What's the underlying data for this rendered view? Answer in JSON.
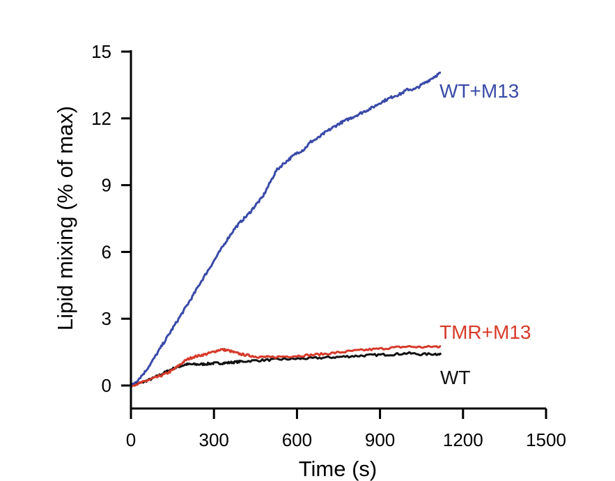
{
  "chart_data": {
    "type": "line",
    "title": "",
    "xlabel": "Time (s)",
    "ylabel": "Lipid mixing (% of max)",
    "xlim": [
      0,
      1500
    ],
    "ylim": [
      0,
      15
    ],
    "xticks": [
      0,
      300,
      600,
      900,
      1200,
      1500
    ],
    "yticks": [
      0,
      3,
      6,
      9,
      12,
      15
    ],
    "xtick_labels": [
      "0",
      "300",
      "600",
      "900",
      "1200",
      "1500"
    ],
    "ytick_labels": [
      "0",
      "3",
      "6",
      "9",
      "12",
      "15"
    ],
    "grid": false,
    "legend": "inline labels at line ends",
    "series": [
      {
        "name": "WT+M13",
        "color": "#3a4aa8",
        "x": [
          0,
          25,
          50,
          75,
          100,
          125,
          150,
          175,
          200,
          225,
          250,
          275,
          300,
          325,
          350,
          375,
          400,
          425,
          450,
          475,
          500,
          525,
          550,
          575,
          600,
          625,
          650,
          675,
          700,
          725,
          750,
          775,
          800,
          825,
          850,
          875,
          900,
          925,
          950,
          975,
          1000,
          1025,
          1050,
          1075,
          1100,
          1120
        ],
        "y": [
          0,
          0.25,
          0.6,
          1.05,
          1.55,
          2.05,
          2.55,
          3.05,
          3.55,
          4.05,
          4.6,
          5.1,
          5.6,
          6.1,
          6.6,
          7.05,
          7.4,
          7.7,
          8.1,
          8.45,
          9.05,
          9.65,
          9.95,
          10.2,
          10.45,
          10.6,
          10.95,
          11.1,
          11.35,
          11.55,
          11.75,
          11.9,
          12.05,
          12.2,
          12.35,
          12.5,
          12.7,
          12.85,
          13.0,
          13.1,
          13.3,
          13.3,
          13.5,
          13.7,
          13.9,
          14.05
        ]
      },
      {
        "name": "TMR+M13",
        "color": "#d63a2a",
        "x": [
          0,
          25,
          50,
          75,
          100,
          125,
          150,
          175,
          200,
          225,
          250,
          275,
          300,
          325,
          350,
          375,
          400,
          425,
          450,
          475,
          500,
          550,
          600,
          650,
          700,
          750,
          800,
          850,
          900,
          950,
          1000,
          1050,
          1100,
          1120
        ],
        "y": [
          0,
          0.08,
          0.18,
          0.3,
          0.4,
          0.52,
          0.68,
          0.92,
          1.15,
          1.28,
          1.35,
          1.42,
          1.52,
          1.62,
          1.58,
          1.48,
          1.4,
          1.35,
          1.3,
          1.28,
          1.27,
          1.3,
          1.33,
          1.37,
          1.42,
          1.48,
          1.55,
          1.6,
          1.65,
          1.7,
          1.75,
          1.72,
          1.75,
          1.75
        ]
      },
      {
        "name": "WT",
        "color": "#111111",
        "x": [
          0,
          25,
          50,
          75,
          100,
          125,
          150,
          175,
          200,
          225,
          250,
          275,
          300,
          325,
          350,
          375,
          400,
          450,
          500,
          550,
          600,
          650,
          700,
          750,
          800,
          850,
          900,
          950,
          1000,
          1050,
          1100,
          1120
        ],
        "y": [
          0,
          0.08,
          0.18,
          0.3,
          0.45,
          0.6,
          0.75,
          0.85,
          0.95,
          0.95,
          0.95,
          0.97,
          1.0,
          1.0,
          1.02,
          1.05,
          1.08,
          1.12,
          1.15,
          1.18,
          1.2,
          1.22,
          1.25,
          1.28,
          1.32,
          1.35,
          1.38,
          1.4,
          1.45,
          1.4,
          1.42,
          1.38
        ]
      }
    ]
  }
}
